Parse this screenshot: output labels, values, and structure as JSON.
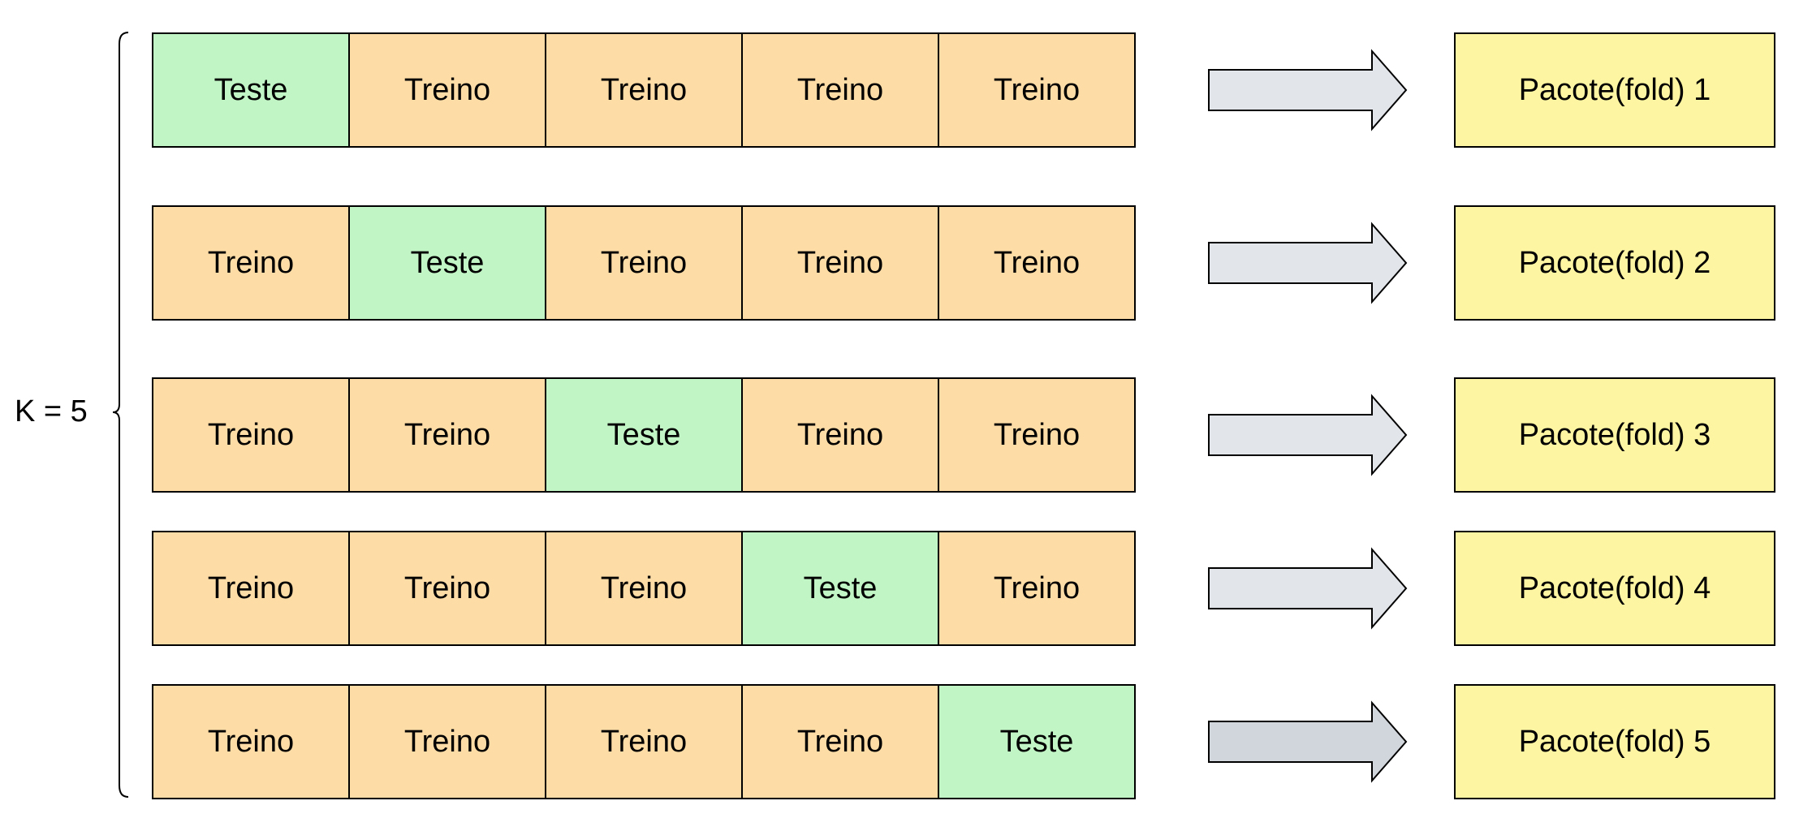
{
  "diagram": {
    "k_label": "K = 5",
    "colors": {
      "train": "#fddca6",
      "test": "#c2f5c6",
      "result": "#fef5a2",
      "arrow": "#e2e5ea",
      "arrow_last": "#d1d6dd"
    },
    "rows": [
      {
        "cells": [
          "Teste",
          "Treino",
          "Treino",
          "Treino",
          "Treino"
        ],
        "test_index": 0,
        "result": "Pacote(fold) 1"
      },
      {
        "cells": [
          "Treino",
          "Teste",
          "Treino",
          "Treino",
          "Treino"
        ],
        "test_index": 1,
        "result": "Pacote(fold) 2"
      },
      {
        "cells": [
          "Treino",
          "Treino",
          "Teste",
          "Treino",
          "Treino"
        ],
        "test_index": 2,
        "result": "Pacote(fold) 3"
      },
      {
        "cells": [
          "Treino",
          "Treino",
          "Treino",
          "Teste",
          "Treino"
        ],
        "test_index": 3,
        "result": "Pacote(fold) 4"
      },
      {
        "cells": [
          "Treino",
          "Treino",
          "Treino",
          "Treino",
          "Teste"
        ],
        "test_index": 4,
        "result": "Pacote(fold) 5"
      }
    ]
  }
}
